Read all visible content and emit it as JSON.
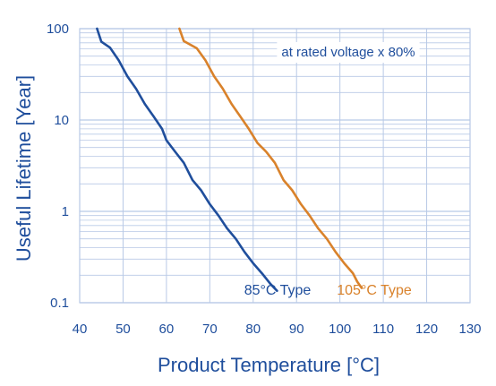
{
  "chart_data": {
    "type": "line",
    "title": "",
    "xlabel": "Product Temperature [°C]",
    "ylabel": "Useful Lifetime [Year]",
    "annotation": "at rated voltage x 80%",
    "x_ticks": [
      "40",
      "50",
      "60",
      "70",
      "80",
      "90",
      "100",
      "110",
      "120",
      "130"
    ],
    "y_ticks": [
      "0.1",
      "1",
      "10",
      "100"
    ],
    "xlim": [
      40,
      130
    ],
    "ylim": [
      0.1,
      100
    ],
    "yscale": "log",
    "grid": true,
    "axis_color": "#1f4e9c",
    "grid_color": "#b8c9e6",
    "series": [
      {
        "name": "85°C Type",
        "color": "#1f4e9c",
        "points": [
          [
            44,
            100
          ],
          [
            45,
            72
          ],
          [
            47,
            62
          ],
          [
            49,
            45
          ],
          [
            51,
            30
          ],
          [
            53,
            22
          ],
          [
            55,
            15
          ],
          [
            57,
            11
          ],
          [
            59,
            8
          ],
          [
            60,
            6
          ],
          [
            62,
            4.5
          ],
          [
            64,
            3.4
          ],
          [
            66,
            2.2
          ],
          [
            68,
            1.7
          ],
          [
            70,
            1.2
          ],
          [
            72,
            0.9
          ],
          [
            74,
            0.65
          ],
          [
            76,
            0.5
          ],
          [
            78,
            0.36
          ],
          [
            80,
            0.27
          ],
          [
            82,
            0.21
          ],
          [
            84,
            0.16
          ],
          [
            85.5,
            0.135
          ]
        ]
      },
      {
        "name": "105°C Type",
        "color": "#d9822b",
        "points": [
          [
            63,
            100
          ],
          [
            64,
            73
          ],
          [
            67,
            61
          ],
          [
            69,
            45
          ],
          [
            71,
            30
          ],
          [
            73,
            22
          ],
          [
            75,
            15
          ],
          [
            77,
            11
          ],
          [
            79,
            8
          ],
          [
            81,
            5.6
          ],
          [
            83,
            4.5
          ],
          [
            85,
            3.4
          ],
          [
            87,
            2.2
          ],
          [
            89,
            1.7
          ],
          [
            91,
            1.2
          ],
          [
            93,
            0.9
          ],
          [
            95,
            0.65
          ],
          [
            97,
            0.5
          ],
          [
            99,
            0.36
          ],
          [
            101,
            0.27
          ],
          [
            103,
            0.21
          ],
          [
            104,
            0.17
          ],
          [
            105,
            0.145
          ]
        ]
      }
    ]
  }
}
